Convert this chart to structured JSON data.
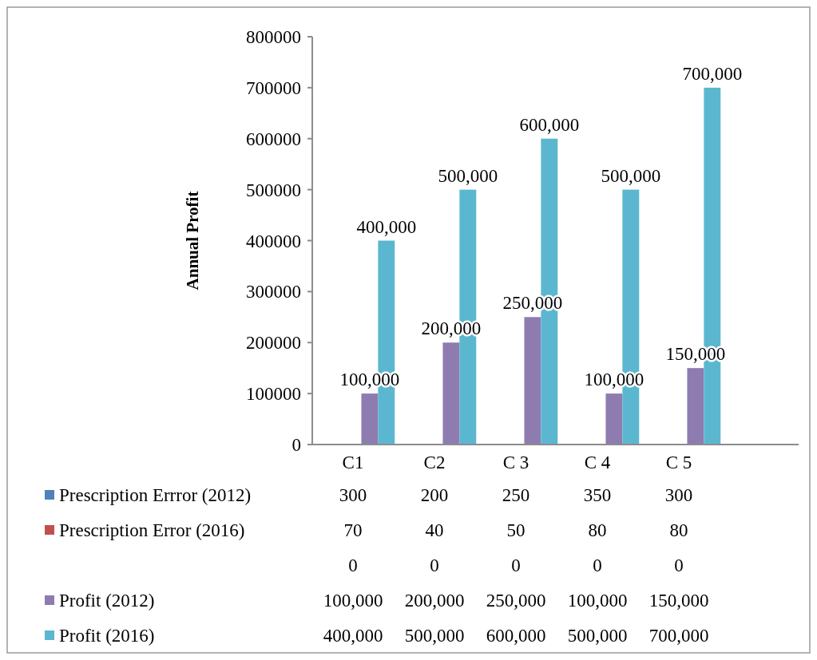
{
  "chart_data": {
    "type": "bar",
    "ylabel": "Annual Profit",
    "categories": [
      "C1",
      "C2",
      "C 3",
      "C 4",
      "C 5"
    ],
    "ylim": [
      0,
      800000
    ],
    "yticks": [
      0,
      100000,
      200000,
      300000,
      400000,
      500000,
      600000,
      700000,
      800000
    ],
    "grid": false,
    "legend": "bottom left",
    "series": [
      {
        "name": "Prescription Errror (2012)",
        "color": "#4f81bd",
        "values": [
          300,
          200,
          250,
          350,
          300
        ],
        "value_labels": [
          "300",
          "200",
          "250",
          "350",
          "300"
        ]
      },
      {
        "name": "Prescription Error (2016)",
        "color": "#c0504d",
        "values": [
          70,
          40,
          50,
          80,
          80
        ],
        "value_labels": [
          "70",
          "40",
          "50",
          "80",
          "80"
        ]
      },
      {
        "color": "#9bbb59",
        "values": [
          0,
          0,
          0,
          0,
          0
        ],
        "value_labels": [
          "0",
          "0",
          "0",
          "0",
          "0"
        ]
      },
      {
        "name": "Profit (2012)",
        "color": "#8e7cb0",
        "values": [
          100000,
          200000,
          250000,
          100000,
          150000
        ],
        "value_labels": [
          "100,000",
          "200,000",
          "250,000",
          "100,000",
          "150,000"
        ]
      },
      {
        "name": "Profit (2016)",
        "color": "#5bb7cf",
        "values": [
          400000,
          500000,
          600000,
          500000,
          700000
        ],
        "value_labels": [
          "400,000",
          "500,000",
          "600,000",
          "500,000",
          "700,000"
        ]
      }
    ]
  }
}
